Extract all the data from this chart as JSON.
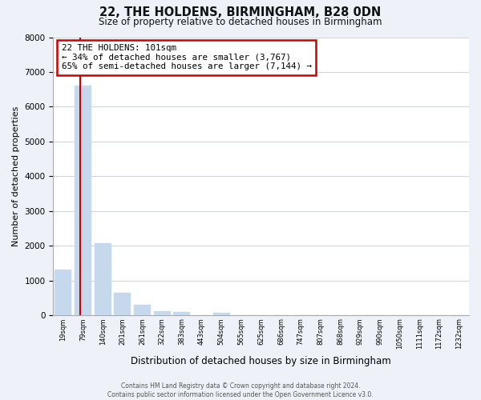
{
  "title": "22, THE HOLDENS, BIRMINGHAM, B28 0DN",
  "subtitle": "Size of property relative to detached houses in Birmingham",
  "xlabel": "Distribution of detached houses by size in Birmingham",
  "ylabel": "Number of detached properties",
  "bin_labels": [
    "19sqm",
    "79sqm",
    "140sqm",
    "201sqm",
    "261sqm",
    "322sqm",
    "383sqm",
    "443sqm",
    "504sqm",
    "565sqm",
    "625sqm",
    "686sqm",
    "747sqm",
    "807sqm",
    "868sqm",
    "929sqm",
    "990sqm",
    "1050sqm",
    "1111sqm",
    "1172sqm",
    "1232sqm"
  ],
  "bar_values": [
    1320,
    6600,
    2080,
    650,
    300,
    130,
    90,
    0,
    80,
    0,
    0,
    0,
    0,
    0,
    0,
    0,
    0,
    0,
    0,
    0,
    0
  ],
  "bar_color": "#c6d9ec",
  "property_line_color": "#cc0000",
  "annotation_line1": "22 THE HOLDENS: 101sqm",
  "annotation_line2": "← 34% of detached houses are smaller (3,767)",
  "annotation_line3": "65% of semi-detached houses are larger (7,144) →",
  "annotation_box_color": "#ffffff",
  "annotation_box_edge": "#cc0000",
  "ylim": [
    0,
    8000
  ],
  "yticks": [
    0,
    1000,
    2000,
    3000,
    4000,
    5000,
    6000,
    7000,
    8000
  ],
  "footer_line1": "Contains HM Land Registry data © Crown copyright and database right 2024.",
  "footer_line2": "Contains public sector information licensed under the Open Government Licence v3.0.",
  "bg_color": "#eef2f8",
  "plot_bg_color": "#ffffff",
  "grid_color": "#c8d4e0"
}
